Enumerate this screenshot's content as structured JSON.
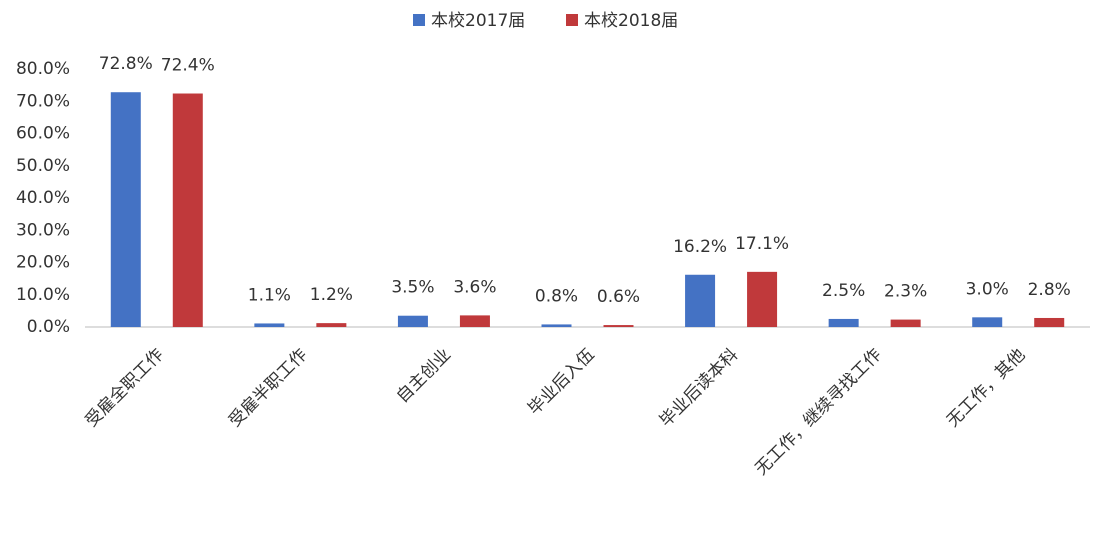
{
  "chart_data": {
    "type": "bar",
    "categories": [
      "受雇全职工作",
      "受雇半职工作",
      "自主创业",
      "毕业后入伍",
      "毕业后读本科",
      "无工作，继续寻找工作",
      "无工作，其他"
    ],
    "series": [
      {
        "name": "本校2017届",
        "color": "#4472c4",
        "values": [
          72.8,
          1.1,
          3.5,
          0.8,
          16.2,
          2.5,
          3.0
        ],
        "value_labels": [
          "72.8%",
          "1.1%",
          "3.5%",
          "0.8%",
          "16.2%",
          "2.5%",
          "3.0%"
        ]
      },
      {
        "name": "本校2018届",
        "color": "#c0393b",
        "values": [
          72.4,
          1.2,
          3.6,
          0.6,
          17.1,
          2.3,
          2.8
        ],
        "value_labels": [
          "72.4%",
          "1.2%",
          "3.6%",
          "0.6%",
          "17.1%",
          "2.3%",
          "2.8%"
        ]
      }
    ],
    "ylim": [
      0,
      80
    ],
    "yticks": [
      {
        "value": 0,
        "label": "0.0%"
      },
      {
        "value": 10,
        "label": "10.0%"
      },
      {
        "value": 20,
        "label": "20.0%"
      },
      {
        "value": 30,
        "label": "30.0%"
      },
      {
        "value": 40,
        "label": "40.0%"
      },
      {
        "value": 50,
        "label": "50.0%"
      },
      {
        "value": 60,
        "label": "60.0%"
      },
      {
        "value": 70,
        "label": "70.0%"
      },
      {
        "value": 80,
        "label": "80.0%"
      }
    ],
    "grid": false,
    "legend": "top"
  }
}
